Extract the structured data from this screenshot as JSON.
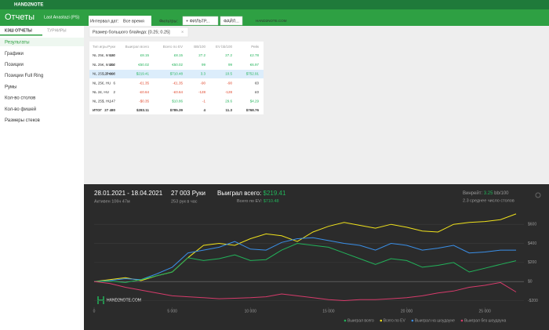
{
  "app": {
    "brand": "HAND2NOTE",
    "header": {
      "title": "Отчеты",
      "user": "Last Anastazi (PS)"
    },
    "tabs": [
      "КЭШ ОТЧЕТЫ",
      "ТУРНИРЫ"
    ],
    "sidebar": [
      "Результаты",
      "Графики",
      "Позиции",
      "Позиции Full Ring",
      "Румы",
      "Кол-во столов",
      "Кол-во фишей",
      "Размеры стеков"
    ],
    "toolbar": {
      "date_label": "Интервал дат:",
      "date_value": "Все время",
      "filters_label": "Фильтры:",
      "filter_button": "+ ФИЛЬТР...",
      "file_button": "ФАЙЛ...",
      "site": "HAND2NOTE.COM"
    },
    "filter_chip": "Размер большого блайнда: [0.25; 0.25]",
    "table": {
      "columns": [
        "Тип игры",
        "Руки",
        "Выиграл всего",
        "Всего по EV",
        "BB/100",
        "EV bb/100",
        "Рейк"
      ],
      "rows": [
        [
          "NL 25£, 6max",
          "120",
          "£8.15",
          "£8.15",
          "27.2",
          "27.2",
          "£2.78"
        ],
        [
          "NL 25€, 6max",
          "202",
          "€50.02",
          "€50.02",
          "99",
          "99",
          "€6.97"
        ],
        [
          "NL 25$, 6max",
          "27 003",
          "$219.41",
          "$710.48",
          "3.3",
          "10.5",
          "$752.91"
        ],
        [
          "NL 25€, HU",
          "6",
          "-€1.35",
          "-€1.35",
          "-90",
          "-90",
          "€0"
        ],
        [
          "NL 2£, HU",
          "2",
          "-£0.64",
          "-£0.64",
          "-128",
          "-128",
          "£0"
        ],
        [
          "NL 25$, HU",
          "147",
          "-$0.35",
          "$10.86",
          "-1",
          "29.6",
          "$4.29"
        ]
      ],
      "total": [
        "ИТОГ",
        "27 480",
        "$283.11",
        "$785.39",
        "4",
        "11.3",
        "$768.76"
      ]
    },
    "stats": {
      "period": "28.01.2021 - 18.04.2021",
      "active": "Активен 106ч 47м",
      "hands": "27 003 Руки",
      "rate": "253 рук в час",
      "won_label": "Выиграл всего:",
      "won": "$219.41",
      "ev_label": "Всего по EV:",
      "ev": "$710.48",
      "winrate_label": "Винрейт:",
      "winrate": "3.25",
      "winrate_unit": "bb/100",
      "tables": "2.3 среднее число столов"
    },
    "watermark": "HAND2NOTE.COM"
  },
  "chart_data": {
    "type": "line",
    "x": [
      0,
      1000,
      2000,
      3000,
      4000,
      5000,
      6000,
      7000,
      8000,
      9000,
      10000,
      11000,
      12000,
      13000,
      14000,
      15000,
      16000,
      17000,
      18000,
      19000,
      20000,
      21000,
      22000,
      23000,
      24000,
      25000,
      26000,
      27000
    ],
    "xlim": [
      0,
      27500
    ],
    "xticks": [
      0,
      {
        "value": 5000,
        "label": "5 000"
      },
      {
        "value": 10000,
        "label": "10 000"
      },
      {
        "value": 15000,
        "label": "15 000"
      },
      {
        "value": 20000,
        "label": "20 000"
      },
      {
        "value": 25000,
        "label": "25 000"
      }
    ],
    "ylim": [
      -270,
      750
    ],
    "yticks": [
      {
        "value": 600,
        "label": "$600"
      },
      {
        "value": 400,
        "label": "$400"
      },
      {
        "value": 200,
        "label": "$200"
      },
      {
        "value": 0,
        "label": "$0"
      },
      {
        "value": -200,
        "label": "-$200"
      }
    ],
    "series": [
      {
        "name": "Выиграл всего",
        "color": "#22b35a",
        "values": [
          0,
          5,
          -10,
          20,
          60,
          100,
          250,
          220,
          240,
          280,
          220,
          230,
          330,
          400,
          380,
          360,
          300,
          240,
          180,
          240,
          220,
          150,
          170,
          200,
          100,
          140,
          180,
          219
        ]
      },
      {
        "name": "Всего по EV",
        "color": "#f0e21c",
        "values": [
          0,
          20,
          40,
          10,
          60,
          100,
          250,
          380,
          400,
          380,
          450,
          500,
          480,
          420,
          520,
          580,
          620,
          590,
          560,
          600,
          570,
          530,
          520,
          600,
          620,
          630,
          650,
          710
        ]
      },
      {
        "name": "Выиграл на шоудауне",
        "color": "#3a8fe8",
        "values": [
          0,
          10,
          30,
          20,
          80,
          150,
          300,
          330,
          360,
          420,
          340,
          330,
          410,
          450,
          460,
          430,
          400,
          380,
          330,
          400,
          380,
          330,
          350,
          380,
          300,
          310,
          330,
          330
        ]
      },
      {
        "name": "Выиграл без шоудауна",
        "color": "#d63b6b",
        "values": [
          0,
          -20,
          -60,
          -90,
          -120,
          -150,
          -160,
          -170,
          -180,
          -175,
          -170,
          -160,
          -130,
          -150,
          -170,
          -190,
          -200,
          -190,
          -190,
          -180,
          -170,
          -150,
          -120,
          -100,
          -60,
          -40,
          -10,
          -110
        ]
      }
    ]
  }
}
